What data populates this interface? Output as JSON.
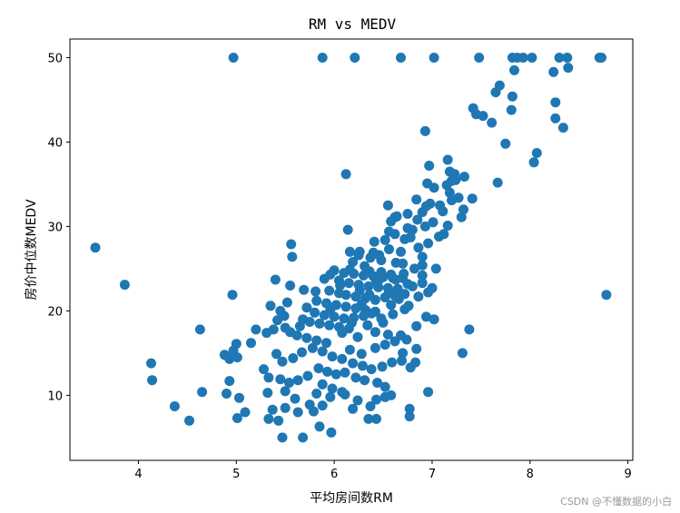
{
  "chart_data": {
    "type": "scatter",
    "title": "RM vs MEDV",
    "xlabel": "平均房间数RM",
    "ylabel": "房价中位数MEDV",
    "xlim": [
      3.3,
      9.05
    ],
    "ylim": [
      2.3,
      52.2
    ],
    "xticks": [
      4,
      5,
      6,
      7,
      8,
      9
    ],
    "yticks": [
      10,
      20,
      30,
      40,
      50
    ],
    "grid": false,
    "marker_color": "#1f77b4",
    "series": [
      {
        "points": [
          [
            4.97,
            50
          ],
          [
            5.88,
            50
          ],
          [
            6.21,
            50
          ],
          [
            6.68,
            50
          ],
          [
            7.02,
            50
          ],
          [
            7.48,
            50
          ],
          [
            7.82,
            50
          ],
          [
            7.87,
            50
          ],
          [
            7.93,
            50
          ],
          [
            8.02,
            50
          ],
          [
            8.3,
            50
          ],
          [
            8.38,
            50
          ],
          [
            8.71,
            50
          ],
          [
            8.73,
            50
          ],
          [
            7.84,
            48.5
          ],
          [
            8.39,
            48.8
          ],
          [
            8.24,
            48.3
          ],
          [
            7.69,
            46.7
          ],
          [
            7.65,
            45.9
          ],
          [
            7.82,
            45.4
          ],
          [
            8.26,
            44.7
          ],
          [
            7.42,
            44.0
          ],
          [
            7.45,
            43.3
          ],
          [
            7.52,
            43.1
          ],
          [
            7.61,
            42.3
          ],
          [
            7.81,
            43.8
          ],
          [
            8.26,
            42.8
          ],
          [
            8.34,
            41.7
          ],
          [
            6.93,
            41.3
          ],
          [
            7.75,
            39.8
          ],
          [
            8.07,
            38.7
          ],
          [
            8.04,
            37.6
          ],
          [
            7.16,
            37.9
          ],
          [
            6.97,
            37.2
          ],
          [
            7.18,
            36.5
          ],
          [
            7.23,
            36.2
          ],
          [
            6.12,
            36.2
          ],
          [
            7.2,
            35.4
          ],
          [
            6.95,
            35.1
          ],
          [
            7.15,
            34.9
          ],
          [
            7.33,
            35.9
          ],
          [
            7.02,
            34.6
          ],
          [
            7.18,
            34.0
          ],
          [
            7.27,
            33.4
          ],
          [
            7.41,
            33.3
          ],
          [
            7.67,
            35.2
          ],
          [
            6.84,
            33.2
          ],
          [
            6.98,
            32.7
          ],
          [
            7.08,
            32.5
          ],
          [
            7.32,
            32.0
          ],
          [
            6.55,
            32.5
          ],
          [
            6.75,
            31.5
          ],
          [
            7.11,
            31.8
          ],
          [
            6.64,
            31.2
          ],
          [
            6.85,
            30.8
          ],
          [
            7.01,
            30.5
          ],
          [
            7.3,
            31.1
          ],
          [
            7.16,
            30.1
          ],
          [
            6.58,
            30.6
          ],
          [
            6.75,
            29.8
          ],
          [
            6.93,
            30.0
          ],
          [
            6.62,
            29.1
          ],
          [
            7.07,
            28.8
          ],
          [
            6.14,
            29.6
          ],
          [
            6.52,
            28.4
          ],
          [
            6.78,
            28.7
          ],
          [
            6.41,
            28.2
          ],
          [
            5.56,
            27.9
          ],
          [
            3.56,
            27.5
          ],
          [
            6.16,
            27.0
          ],
          [
            6.25,
            26.6
          ],
          [
            6.37,
            26.3
          ],
          [
            6.48,
            26.0
          ],
          [
            6.63,
            25.7
          ],
          [
            6.9,
            25.4
          ],
          [
            7.04,
            25.0
          ],
          [
            5.57,
            26.4
          ],
          [
            6.19,
            25.8
          ],
          [
            6.31,
            25.3
          ],
          [
            6.0,
            24.8
          ],
          [
            6.1,
            24.5
          ],
          [
            6.2,
            24.4
          ],
          [
            6.3,
            24.2
          ],
          [
            6.4,
            24.1
          ],
          [
            6.5,
            24.0
          ],
          [
            6.6,
            23.9
          ],
          [
            6.7,
            23.9
          ],
          [
            5.9,
            23.8
          ],
          [
            6.05,
            23.6
          ],
          [
            6.15,
            23.3
          ],
          [
            6.25,
            23.1
          ],
          [
            6.35,
            22.9
          ],
          [
            6.45,
            22.8
          ],
          [
            6.55,
            22.7
          ],
          [
            6.65,
            22.6
          ],
          [
            6.8,
            22.9
          ],
          [
            6.9,
            23.3
          ],
          [
            5.95,
            22.4
          ],
          [
            6.05,
            22.1
          ],
          [
            6.12,
            21.9
          ],
          [
            6.22,
            21.7
          ],
          [
            6.32,
            21.5
          ],
          [
            6.42,
            21.3
          ],
          [
            6.52,
            21.6
          ],
          [
            6.62,
            21.8
          ],
          [
            6.72,
            22.0
          ],
          [
            5.82,
            21.2
          ],
          [
            5.92,
            20.9
          ],
          [
            6.02,
            20.7
          ],
          [
            6.12,
            20.5
          ],
          [
            6.22,
            20.3
          ],
          [
            6.32,
            20.1
          ],
          [
            6.42,
            19.9
          ],
          [
            5.72,
            20.4
          ],
          [
            5.8,
            19.8
          ],
          [
            5.9,
            19.5
          ],
          [
            6.0,
            19.3
          ],
          [
            6.1,
            19.1
          ],
          [
            6.2,
            19.2
          ],
          [
            6.3,
            19.4
          ],
          [
            5.68,
            19.0
          ],
          [
            5.75,
            18.7
          ],
          [
            5.85,
            18.5
          ],
          [
            5.95,
            18.3
          ],
          [
            6.05,
            18.1
          ],
          [
            6.15,
            17.9
          ],
          [
            5.65,
            18.2
          ],
          [
            5.55,
            17.5
          ],
          [
            5.62,
            17.1
          ],
          [
            5.72,
            16.8
          ],
          [
            5.82,
            16.5
          ],
          [
            5.92,
            16.2
          ],
          [
            5.4,
            23.7
          ],
          [
            5.55,
            23.0
          ],
          [
            5.69,
            22.5
          ],
          [
            5.81,
            22.3
          ],
          [
            5.35,
            20.6
          ],
          [
            5.45,
            20.0
          ],
          [
            5.52,
            21.0
          ],
          [
            5.96,
            24.3
          ],
          [
            6.48,
            24.6
          ],
          [
            6.58,
            24.3
          ],
          [
            6.71,
            24.4
          ],
          [
            6.82,
            25.0
          ],
          [
            6.43,
            23.5
          ],
          [
            6.63,
            23.7
          ],
          [
            6.75,
            23.2
          ],
          [
            6.9,
            24.2
          ],
          [
            7.0,
            22.7
          ],
          [
            6.86,
            21.7
          ],
          [
            6.96,
            22.2
          ],
          [
            6.58,
            20.7
          ],
          [
            6.72,
            20.2
          ],
          [
            6.6,
            19.6
          ],
          [
            6.48,
            19.1
          ],
          [
            6.5,
            18.6
          ],
          [
            6.34,
            18.3
          ],
          [
            6.42,
            17.5
          ],
          [
            6.55,
            17.2
          ],
          [
            6.62,
            16.4
          ],
          [
            5.49,
            19.4
          ],
          [
            5.42,
            18.9
          ],
          [
            5.5,
            18.0
          ],
          [
            5.38,
            17.8
          ],
          [
            5.31,
            17.4
          ],
          [
            5.2,
            17.8
          ],
          [
            5.15,
            16.2
          ],
          [
            4.63,
            17.8
          ],
          [
            5.0,
            16.1
          ],
          [
            4.97,
            15.3
          ],
          [
            4.88,
            14.8
          ],
          [
            4.93,
            14.3
          ],
          [
            5.01,
            14.5
          ],
          [
            5.41,
            14.9
          ],
          [
            5.47,
            14.0
          ],
          [
            5.58,
            14.4
          ],
          [
            5.67,
            15.1
          ],
          [
            5.78,
            15.6
          ],
          [
            5.88,
            15.2
          ],
          [
            5.98,
            14.6
          ],
          [
            6.08,
            14.3
          ],
          [
            6.19,
            13.8
          ],
          [
            6.29,
            13.5
          ],
          [
            6.38,
            13.1
          ],
          [
            6.49,
            13.4
          ],
          [
            6.59,
            13.9
          ],
          [
            6.69,
            14.1
          ],
          [
            6.78,
            13.3
          ],
          [
            6.83,
            13.9
          ],
          [
            5.84,
            13.2
          ],
          [
            5.93,
            12.8
          ],
          [
            6.02,
            12.5
          ],
          [
            6.11,
            12.7
          ],
          [
            6.22,
            12.1
          ],
          [
            6.31,
            11.8
          ],
          [
            6.44,
            11.5
          ],
          [
            6.52,
            11.0
          ],
          [
            5.28,
            13.1
          ],
          [
            5.33,
            12.1
          ],
          [
            5.45,
            11.9
          ],
          [
            5.54,
            11.5
          ],
          [
            5.63,
            11.8
          ],
          [
            5.73,
            12.3
          ],
          [
            5.88,
            11.3
          ],
          [
            5.98,
            10.8
          ],
          [
            6.08,
            10.4
          ],
          [
            4.13,
            13.8
          ],
          [
            4.14,
            11.8
          ],
          [
            4.65,
            10.4
          ],
          [
            4.93,
            11.7
          ],
          [
            5.03,
            9.7
          ],
          [
            4.9,
            10.2
          ],
          [
            5.32,
            10.3
          ],
          [
            5.5,
            10.5
          ],
          [
            5.6,
            9.6
          ],
          [
            5.75,
            8.9
          ],
          [
            5.82,
            10.2
          ],
          [
            5.96,
            9.8
          ],
          [
            6.11,
            10.1
          ],
          [
            6.24,
            9.4
          ],
          [
            6.37,
            8.7
          ],
          [
            6.43,
            9.5
          ],
          [
            6.52,
            9.8
          ],
          [
            6.58,
            10.0
          ],
          [
            6.96,
            10.4
          ],
          [
            5.37,
            8.3
          ],
          [
            5.5,
            8.5
          ],
          [
            5.63,
            8.0
          ],
          [
            5.79,
            8.1
          ],
          [
            5.88,
            8.8
          ],
          [
            6.19,
            8.4
          ],
          [
            6.77,
            8.4
          ],
          [
            5.33,
            7.2
          ],
          [
            5.43,
            7.0
          ],
          [
            5.85,
            6.3
          ],
          [
            6.35,
            7.2
          ],
          [
            6.43,
            7.2
          ],
          [
            6.77,
            7.5
          ],
          [
            4.37,
            8.7
          ],
          [
            4.52,
            7.0
          ],
          [
            5.01,
            7.3
          ],
          [
            5.09,
            8.0
          ],
          [
            5.47,
            5.0
          ],
          [
            5.68,
            5.0
          ],
          [
            5.97,
            5.6
          ],
          [
            7.31,
            15.0
          ],
          [
            7.38,
            17.8
          ],
          [
            8.78,
            21.9
          ],
          [
            3.86,
            23.1
          ],
          [
            4.96,
            21.9
          ],
          [
            6.26,
            22.4
          ],
          [
            6.36,
            24.7
          ],
          [
            6.46,
            23.7
          ],
          [
            6.56,
            22.2
          ],
          [
            6.66,
            21.4
          ],
          [
            6.76,
            20.6
          ],
          [
            6.36,
            21.9
          ],
          [
            6.16,
            24.9
          ],
          [
            6.06,
            23.0
          ],
          [
            5.96,
            20.1
          ],
          [
            6.28,
            20.8
          ],
          [
            6.38,
            19.7
          ],
          [
            6.18,
            18.6
          ],
          [
            6.08,
            17.4
          ],
          [
            6.24,
            16.9
          ],
          [
            6.42,
            15.6
          ],
          [
            6.52,
            16.0
          ],
          [
            6.16,
            15.4
          ],
          [
            6.28,
            14.9
          ],
          [
            6.68,
            17.1
          ],
          [
            6.74,
            16.6
          ],
          [
            6.84,
            15.5
          ],
          [
            6.7,
            15.0
          ],
          [
            6.84,
            18.2
          ],
          [
            6.94,
            19.3
          ],
          [
            7.02,
            19.0
          ],
          [
            6.46,
            26.6
          ],
          [
            6.56,
            27.3
          ],
          [
            6.68,
            27.0
          ],
          [
            6.86,
            27.5
          ],
          [
            6.72,
            28.5
          ],
          [
            6.8,
            29.6
          ],
          [
            6.96,
            28.0
          ],
          [
            7.12,
            29.1
          ],
          [
            6.9,
            26.4
          ],
          [
            6.7,
            25.6
          ],
          [
            6.26,
            27.0
          ],
          [
            6.4,
            26.9
          ],
          [
            6.56,
            29.4
          ],
          [
            6.62,
            31.1
          ],
          [
            6.9,
            31.7
          ],
          [
            6.94,
            32.4
          ],
          [
            7.2,
            33.1
          ],
          [
            7.24,
            35.5
          ]
        ]
      }
    ]
  },
  "watermark": "CSDN @不懂数据的小白"
}
